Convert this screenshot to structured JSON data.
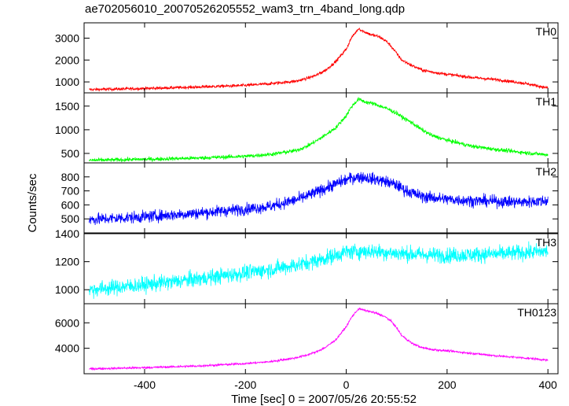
{
  "title": "ae702056010_20070526205552_wam3_trn_4band_long.qdp",
  "chart_data": {
    "type": "line",
    "title": "ae702056010_20070526205552_wam3_trn_4band_long.qdp",
    "xlabel": "Time [sec] 0 = 2007/05/26 20:55:52",
    "ylabel": "Counts/sec",
    "xlim": [
      -520,
      420
    ],
    "xticks": [
      -400,
      -200,
      0,
      200,
      400
    ],
    "grid": false,
    "panels": [
      {
        "name": "TH0",
        "color": "#ff0000",
        "ylim": [
          500,
          3700
        ],
        "yticks": [
          1000,
          2000,
          3000
        ],
        "noise": 50,
        "x": [
          -510,
          -400,
          -300,
          -200,
          -150,
          -100,
          -80,
          -60,
          -40,
          -20,
          0,
          10,
          20,
          25,
          30,
          40,
          50,
          60,
          70,
          80,
          90,
          100,
          110,
          130,
          150,
          170,
          200,
          250,
          300,
          350,
          380,
          400
        ],
        "y": [
          650,
          700,
          760,
          840,
          920,
          1030,
          1150,
          1300,
          1550,
          1950,
          2500,
          3000,
          3300,
          3450,
          3350,
          3250,
          3150,
          3100,
          3000,
          2850,
          2600,
          2300,
          2000,
          1750,
          1550,
          1450,
          1350,
          1200,
          1100,
          950,
          820,
          720
        ]
      },
      {
        "name": "TH1",
        "color": "#00ff00",
        "ylim": [
          300,
          1780
        ],
        "yticks": [
          500,
          1000,
          1500
        ],
        "noise": 30,
        "x": [
          -510,
          -400,
          -300,
          -200,
          -150,
          -100,
          -80,
          -60,
          -40,
          -20,
          0,
          10,
          20,
          25,
          30,
          40,
          50,
          60,
          70,
          80,
          90,
          100,
          110,
          130,
          150,
          170,
          200,
          250,
          300,
          350,
          380,
          400
        ],
        "y": [
          355,
          375,
          400,
          440,
          480,
          560,
          640,
          760,
          900,
          1050,
          1300,
          1480,
          1600,
          1650,
          1620,
          1580,
          1560,
          1530,
          1490,
          1450,
          1400,
          1350,
          1270,
          1150,
          1000,
          880,
          780,
          650,
          580,
          520,
          490,
          470
        ]
      },
      {
        "name": "TH2",
        "color": "#0000ff",
        "ylim": [
          400,
          900
        ],
        "yticks": [
          500,
          600,
          700,
          800
        ],
        "noise": 30,
        "x": [
          -510,
          -400,
          -300,
          -200,
          -150,
          -100,
          -80,
          -60,
          -40,
          -20,
          0,
          20,
          40,
          60,
          80,
          100,
          120,
          150,
          200,
          250,
          300,
          350,
          400
        ],
        "y": [
          495,
          515,
          540,
          570,
          590,
          635,
          660,
          690,
          720,
          750,
          780,
          800,
          795,
          780,
          765,
          740,
          700,
          660,
          640,
          630,
          625,
          620,
          630
        ]
      },
      {
        "name": "TH3",
        "color": "#00ffff",
        "ylim": [
          900,
          1400
        ],
        "yticks": [
          1000,
          1200,
          1400
        ],
        "noise": 40,
        "x": [
          -510,
          -400,
          -300,
          -200,
          -150,
          -100,
          -50,
          0,
          50,
          100,
          150,
          200,
          300,
          400
        ],
        "y": [
          1000,
          1035,
          1075,
          1120,
          1145,
          1175,
          1215,
          1270,
          1275,
          1260,
          1250,
          1245,
          1255,
          1275
        ]
      },
      {
        "name": "TH0123",
        "color": "#ff00ff",
        "ylim": [
          2000,
          7500
        ],
        "yticks": [
          4000,
          6000
        ],
        "noise": 60,
        "x": [
          -510,
          -400,
          -300,
          -200,
          -150,
          -100,
          -80,
          -60,
          -40,
          -20,
          0,
          10,
          20,
          25,
          30,
          40,
          50,
          60,
          70,
          80,
          90,
          100,
          110,
          130,
          150,
          170,
          200,
          250,
          300,
          350,
          380,
          400
        ],
        "y": [
          2380,
          2480,
          2600,
          2800,
          2950,
          3250,
          3450,
          3700,
          4100,
          4700,
          5700,
          6400,
          6900,
          7100,
          7050,
          6950,
          6850,
          6750,
          6600,
          6400,
          6100,
          5600,
          5000,
          4400,
          4050,
          3900,
          3800,
          3600,
          3400,
          3250,
          3150,
          3050
        ]
      }
    ]
  }
}
